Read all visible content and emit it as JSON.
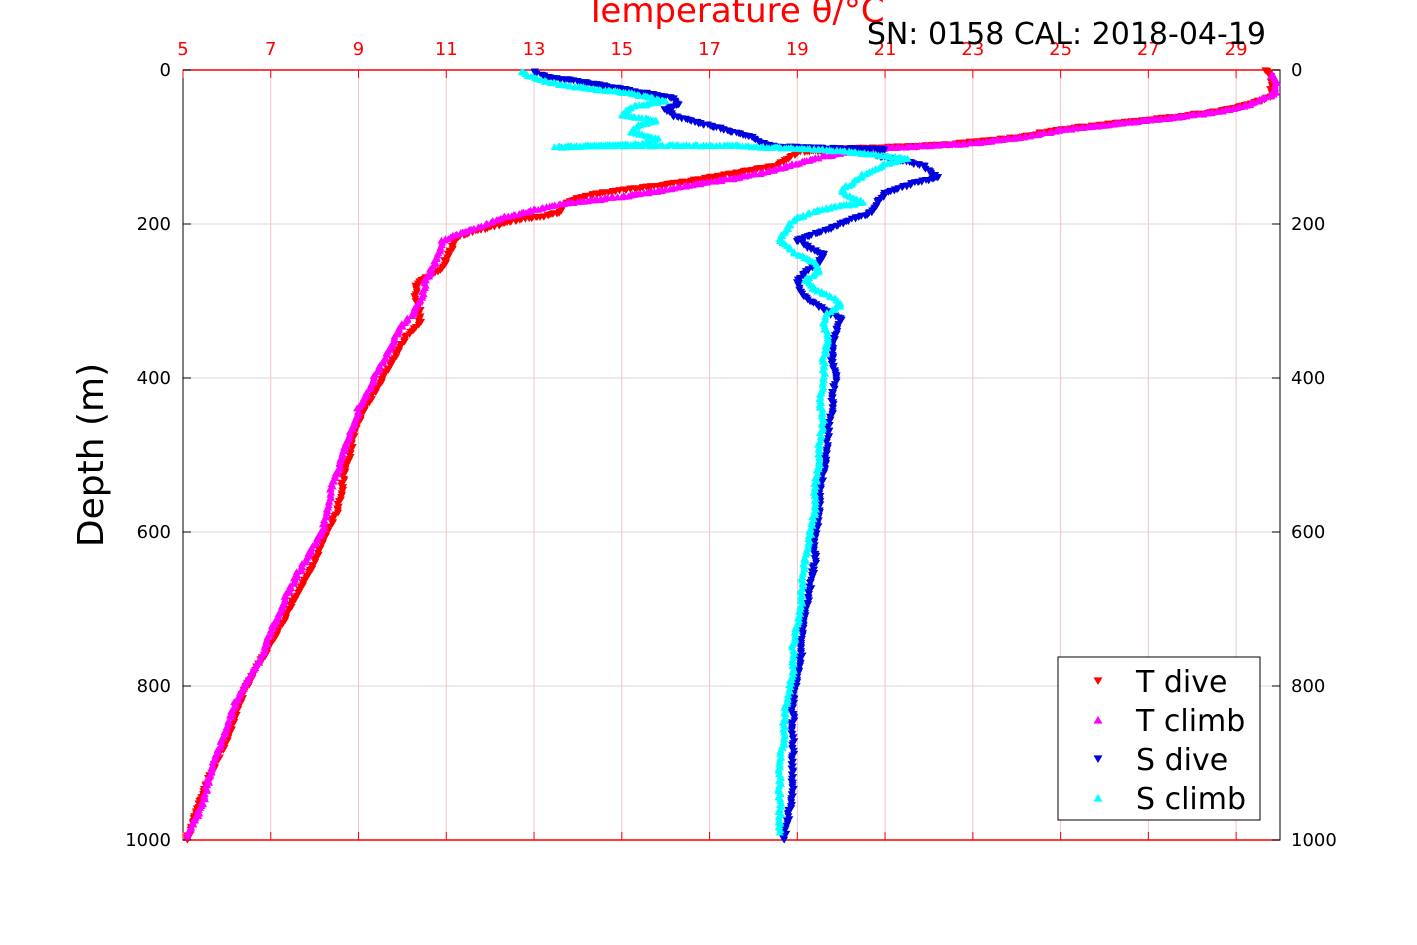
{
  "chart_data": {
    "type": "scatter",
    "title": "Temperature θ/°C",
    "subtitle": "SN: 0158  CAL: 2018-04-19",
    "ylabel": "Depth (m)",
    "xlim": [
      5,
      30
    ],
    "xticks": [
      5,
      7,
      9,
      11,
      13,
      15,
      17,
      19,
      21,
      23,
      25,
      27,
      29
    ],
    "ylim": [
      0,
      1000
    ],
    "y_reversed": true,
    "yticks": [
      0,
      200,
      400,
      600,
      800,
      1000
    ],
    "grid": true,
    "legend_position": "bottom-right",
    "colors": {
      "t_dive": "#ff0000",
      "t_climb": "#ff00ff",
      "s_dive": "#0000dd",
      "s_climb": "#00ffff",
      "axis_top": "#ff0000"
    },
    "series": [
      {
        "name": "T dive",
        "marker": "triangle-down",
        "color": "#ff0000",
        "points": [
          [
            29.7,
            0
          ],
          [
            29.8,
            10
          ],
          [
            29.8,
            20
          ],
          [
            29.8,
            35
          ],
          [
            29.3,
            45
          ],
          [
            28.5,
            55
          ],
          [
            27.5,
            62
          ],
          [
            26.5,
            68
          ],
          [
            25,
            78
          ],
          [
            24,
            88
          ],
          [
            22.5,
            97
          ],
          [
            21.5,
            100
          ],
          [
            20,
            103
          ],
          [
            19,
            107
          ],
          [
            18.8,
            115
          ],
          [
            18.5,
            125
          ],
          [
            17.5,
            135
          ],
          [
            16.5,
            145
          ],
          [
            15.5,
            153
          ],
          [
            14.5,
            160
          ],
          [
            13.8,
            170
          ],
          [
            13.6,
            185
          ],
          [
            13.2,
            190
          ],
          [
            12.6,
            195
          ],
          [
            12,
            205
          ],
          [
            11.5,
            212
          ],
          [
            11.2,
            220
          ],
          [
            11.1,
            235
          ],
          [
            11.0,
            245
          ],
          [
            10.9,
            260
          ],
          [
            10.5,
            270
          ],
          [
            10.3,
            283
          ],
          [
            10.3,
            300
          ],
          [
            10.4,
            315
          ],
          [
            10.4,
            330
          ],
          [
            10.1,
            345
          ],
          [
            9.9,
            365
          ],
          [
            9.7,
            385
          ],
          [
            9.5,
            405
          ],
          [
            9.3,
            425
          ],
          [
            9.1,
            445
          ],
          [
            8.9,
            470
          ],
          [
            8.8,
            500
          ],
          [
            8.7,
            520
          ],
          [
            8.6,
            550
          ],
          [
            8.5,
            575
          ],
          [
            8.3,
            600
          ],
          [
            8.1,
            625
          ],
          [
            7.9,
            650
          ],
          [
            7.6,
            680
          ],
          [
            7.3,
            715
          ],
          [
            7.0,
            745
          ],
          [
            6.7,
            775
          ],
          [
            6.4,
            805
          ],
          [
            6.2,
            840
          ],
          [
            6.0,
            870
          ],
          [
            5.7,
            905
          ],
          [
            5.5,
            935
          ],
          [
            5.3,
            965
          ],
          [
            5.2,
            985
          ],
          [
            5.1,
            1000
          ]
        ]
      },
      {
        "name": "T climb",
        "marker": "triangle-up",
        "color": "#ff00ff",
        "points": [
          [
            29.8,
            5
          ],
          [
            29.9,
            15
          ],
          [
            29.9,
            30
          ],
          [
            29.3,
            45
          ],
          [
            28.5,
            55
          ],
          [
            27.5,
            62
          ],
          [
            26.5,
            68
          ],
          [
            25,
            78
          ],
          [
            24,
            88
          ],
          [
            23,
            95
          ],
          [
            22,
            98
          ],
          [
            21,
            101
          ],
          [
            20.3,
            105
          ],
          [
            19.6,
            112
          ],
          [
            18.8,
            124
          ],
          [
            18.3,
            133
          ],
          [
            17.4,
            142
          ],
          [
            16.5,
            150
          ],
          [
            15.5,
            160
          ],
          [
            14.5,
            168
          ],
          [
            13.5,
            175
          ],
          [
            13,
            182
          ],
          [
            12.4,
            190
          ],
          [
            12,
            198
          ],
          [
            11.7,
            205
          ],
          [
            11.3,
            212
          ],
          [
            10.9,
            222
          ],
          [
            10.8,
            240
          ],
          [
            10.7,
            255
          ],
          [
            10.6,
            265
          ],
          [
            10.5,
            275
          ],
          [
            10.5,
            285
          ],
          [
            10.4,
            300
          ],
          [
            10.2,
            318
          ],
          [
            10.0,
            330
          ],
          [
            9.8,
            350
          ],
          [
            9.6,
            375
          ],
          [
            9.4,
            395
          ],
          [
            9.2,
            420
          ],
          [
            9.0,
            440
          ],
          [
            8.9,
            460
          ],
          [
            8.7,
            490
          ],
          [
            8.6,
            510
          ],
          [
            8.4,
            540
          ],
          [
            8.3,
            565
          ],
          [
            8.2,
            595
          ],
          [
            7.9,
            625
          ],
          [
            7.6,
            655
          ],
          [
            7.3,
            690
          ],
          [
            7.0,
            730
          ],
          [
            6.8,
            760
          ],
          [
            6.5,
            790
          ],
          [
            6.2,
            820
          ],
          [
            6.0,
            855
          ],
          [
            5.8,
            885
          ],
          [
            5.6,
            915
          ],
          [
            5.5,
            945
          ],
          [
            5.3,
            970
          ],
          [
            5.1,
            995
          ]
        ]
      },
      {
        "name": "S dive",
        "marker": "triangle-down",
        "color": "#0000dd",
        "points": [
          [
            13.0,
            2
          ],
          [
            13.3,
            10
          ],
          [
            14.0,
            15
          ],
          [
            14.7,
            22
          ],
          [
            15.5,
            30
          ],
          [
            16.2,
            38
          ],
          [
            16.3,
            45
          ],
          [
            16.0,
            52
          ],
          [
            16.2,
            60
          ],
          [
            16.8,
            70
          ],
          [
            17.5,
            80
          ],
          [
            18.0,
            88
          ],
          [
            18.2,
            95
          ],
          [
            18.5,
            100
          ],
          [
            19.5,
            102
          ],
          [
            21,
            103
          ],
          [
            20.8,
            112
          ],
          [
            21.4,
            118
          ],
          [
            21.9,
            125
          ],
          [
            22.0,
            132
          ],
          [
            22.2,
            140
          ],
          [
            21.6,
            148
          ],
          [
            21.0,
            160
          ],
          [
            20.8,
            175
          ],
          [
            20.7,
            185
          ],
          [
            20.2,
            195
          ],
          [
            19.8,
            205
          ],
          [
            19.3,
            215
          ],
          [
            19.0,
            222
          ],
          [
            19.3,
            232
          ],
          [
            19.6,
            240
          ],
          [
            19.5,
            250
          ],
          [
            19.2,
            262
          ],
          [
            19.0,
            275
          ],
          [
            19.1,
            290
          ],
          [
            19.3,
            300
          ],
          [
            19.7,
            315
          ],
          [
            20.0,
            325
          ],
          [
            19.9,
            340
          ],
          [
            19.8,
            360
          ],
          [
            19.8,
            380
          ],
          [
            19.9,
            400
          ],
          [
            19.8,
            420
          ],
          [
            19.8,
            440
          ],
          [
            19.7,
            465
          ],
          [
            19.7,
            490
          ],
          [
            19.6,
            520
          ],
          [
            19.5,
            550
          ],
          [
            19.5,
            580
          ],
          [
            19.4,
            610
          ],
          [
            19.4,
            640
          ],
          [
            19.3,
            670
          ],
          [
            19.2,
            700
          ],
          [
            19.1,
            730
          ],
          [
            19.1,
            760
          ],
          [
            19.0,
            790
          ],
          [
            18.9,
            820
          ],
          [
            18.9,
            850
          ],
          [
            18.9,
            880
          ],
          [
            18.9,
            910
          ],
          [
            18.9,
            940
          ],
          [
            18.8,
            970
          ],
          [
            18.7,
            1000
          ]
        ]
      },
      {
        "name": "S climb",
        "marker": "triangle-up",
        "color": "#00ffff",
        "points": [
          [
            12.7,
            2
          ],
          [
            13.0,
            10
          ],
          [
            13.5,
            18
          ],
          [
            14.0,
            22
          ],
          [
            14.6,
            26
          ],
          [
            15.2,
            30
          ],
          [
            15.6,
            35
          ],
          [
            16.0,
            40
          ],
          [
            15.2,
            48
          ],
          [
            15.0,
            58
          ],
          [
            15.8,
            65
          ],
          [
            15.4,
            72
          ],
          [
            15.2,
            80
          ],
          [
            15.8,
            88
          ],
          [
            15.5,
            96
          ],
          [
            13.5,
            100
          ],
          [
            14.5,
            98
          ],
          [
            17.5,
            98
          ],
          [
            19.5,
            103
          ],
          [
            20.5,
            108
          ],
          [
            21.5,
            115
          ],
          [
            21.0,
            122
          ],
          [
            20.8,
            128
          ],
          [
            20.5,
            136
          ],
          [
            20.3,
            145
          ],
          [
            20.0,
            155
          ],
          [
            20.2,
            165
          ],
          [
            20.5,
            172
          ],
          [
            19.8,
            178
          ],
          [
            19.3,
            185
          ],
          [
            18.9,
            195
          ],
          [
            18.7,
            210
          ],
          [
            18.6,
            220
          ],
          [
            18.8,
            230
          ],
          [
            19.0,
            240
          ],
          [
            19.4,
            250
          ],
          [
            19.5,
            262
          ],
          [
            19.2,
            272
          ],
          [
            19.4,
            285
          ],
          [
            19.8,
            295
          ],
          [
            20.0,
            305
          ],
          [
            19.7,
            315
          ],
          [
            19.6,
            330
          ],
          [
            19.7,
            350
          ],
          [
            19.6,
            375
          ],
          [
            19.6,
            400
          ],
          [
            19.5,
            430
          ],
          [
            19.6,
            455
          ],
          [
            19.5,
            480
          ],
          [
            19.5,
            510
          ],
          [
            19.4,
            540
          ],
          [
            19.4,
            570
          ],
          [
            19.3,
            600
          ],
          [
            19.2,
            630
          ],
          [
            19.1,
            660
          ],
          [
            19.1,
            690
          ],
          [
            19.0,
            720
          ],
          [
            18.9,
            750
          ],
          [
            18.9,
            780
          ],
          [
            18.8,
            810
          ],
          [
            18.7,
            840
          ],
          [
            18.7,
            870
          ],
          [
            18.6,
            900
          ],
          [
            18.6,
            930
          ],
          [
            18.6,
            960
          ],
          [
            18.6,
            990
          ]
        ]
      }
    ]
  }
}
